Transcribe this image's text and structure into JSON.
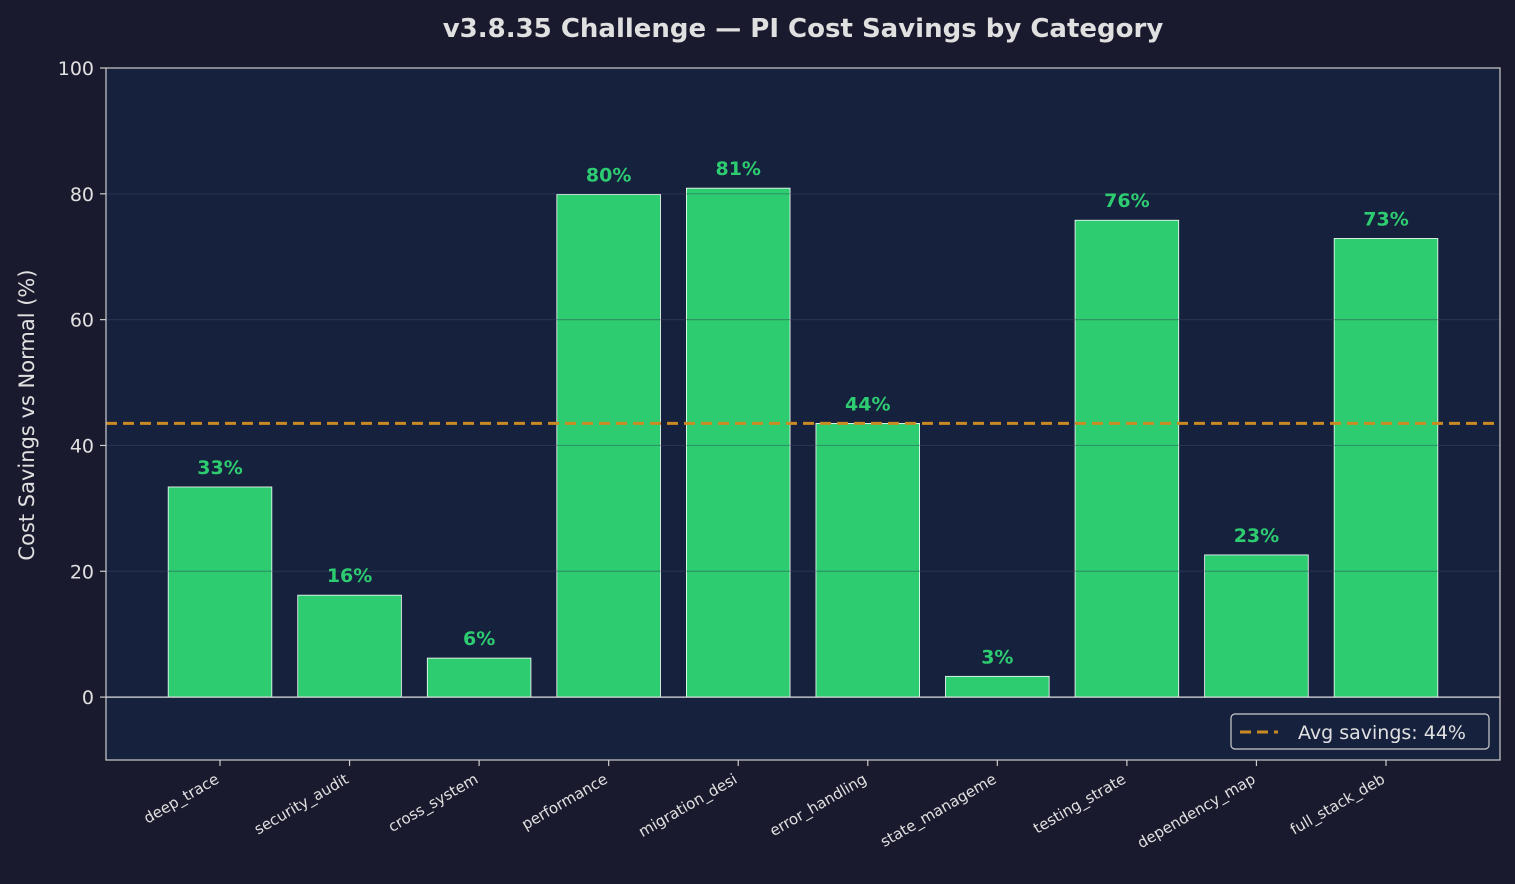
{
  "chart_data": {
    "type": "bar",
    "title": "v3.8.35 Challenge — PI Cost Savings by Category",
    "xlabel": "",
    "ylabel": "Cost Savings vs Normal (%)",
    "ylim": [
      -10,
      100
    ],
    "yticks": [
      0,
      20,
      40,
      60,
      80,
      100
    ],
    "grid": true,
    "categories": [
      "deep_trace",
      "security_audit",
      "cross_system",
      "performance",
      "migration_desi",
      "error_handling",
      "state_manageme",
      "testing_strate",
      "dependency_map",
      "full_stack_deb"
    ],
    "values": [
      33.4,
      16.2,
      6.2,
      79.9,
      80.9,
      43.5,
      3.3,
      75.8,
      22.6,
      72.9
    ],
    "data_labels": [
      "33%",
      "16%",
      "6%",
      "80%",
      "81%",
      "44%",
      "3%",
      "76%",
      "23%",
      "73%"
    ],
    "reference_line": {
      "label": "Avg savings: 44%",
      "value": 43.5,
      "style": "dashed"
    },
    "legend_position": "lower-right",
    "colors": {
      "bar": "#2ecc71",
      "label": "#2ecc71",
      "avg_line": "#c98a24",
      "background": "#1a1a2e",
      "plot_background": "#16213e",
      "text": "#e0e0e0"
    }
  }
}
